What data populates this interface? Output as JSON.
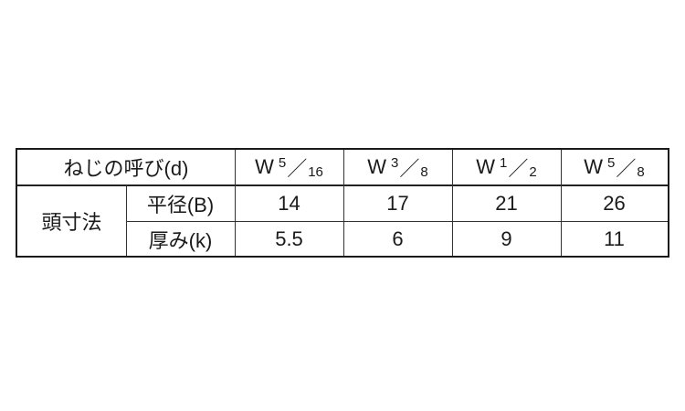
{
  "table": {
    "header_label": "ねじの呼び(d)",
    "group_label": "頭寸法",
    "columns": [
      {
        "prefix": "W",
        "numerator": "5",
        "slash": "／",
        "denominator": "16"
      },
      {
        "prefix": "W",
        "numerator": "3",
        "slash": "／",
        "denominator": "8"
      },
      {
        "prefix": "W",
        "numerator": "1",
        "slash": "／",
        "denominator": "2"
      },
      {
        "prefix": "W",
        "numerator": "5",
        "slash": "／",
        "denominator": "8"
      }
    ],
    "rows": [
      {
        "label": "平径(B)",
        "values": [
          "14",
          "17",
          "21",
          "26"
        ]
      },
      {
        "label": "厚み(k)",
        "values": [
          "5.5",
          "6",
          "9",
          "11"
        ]
      }
    ]
  }
}
